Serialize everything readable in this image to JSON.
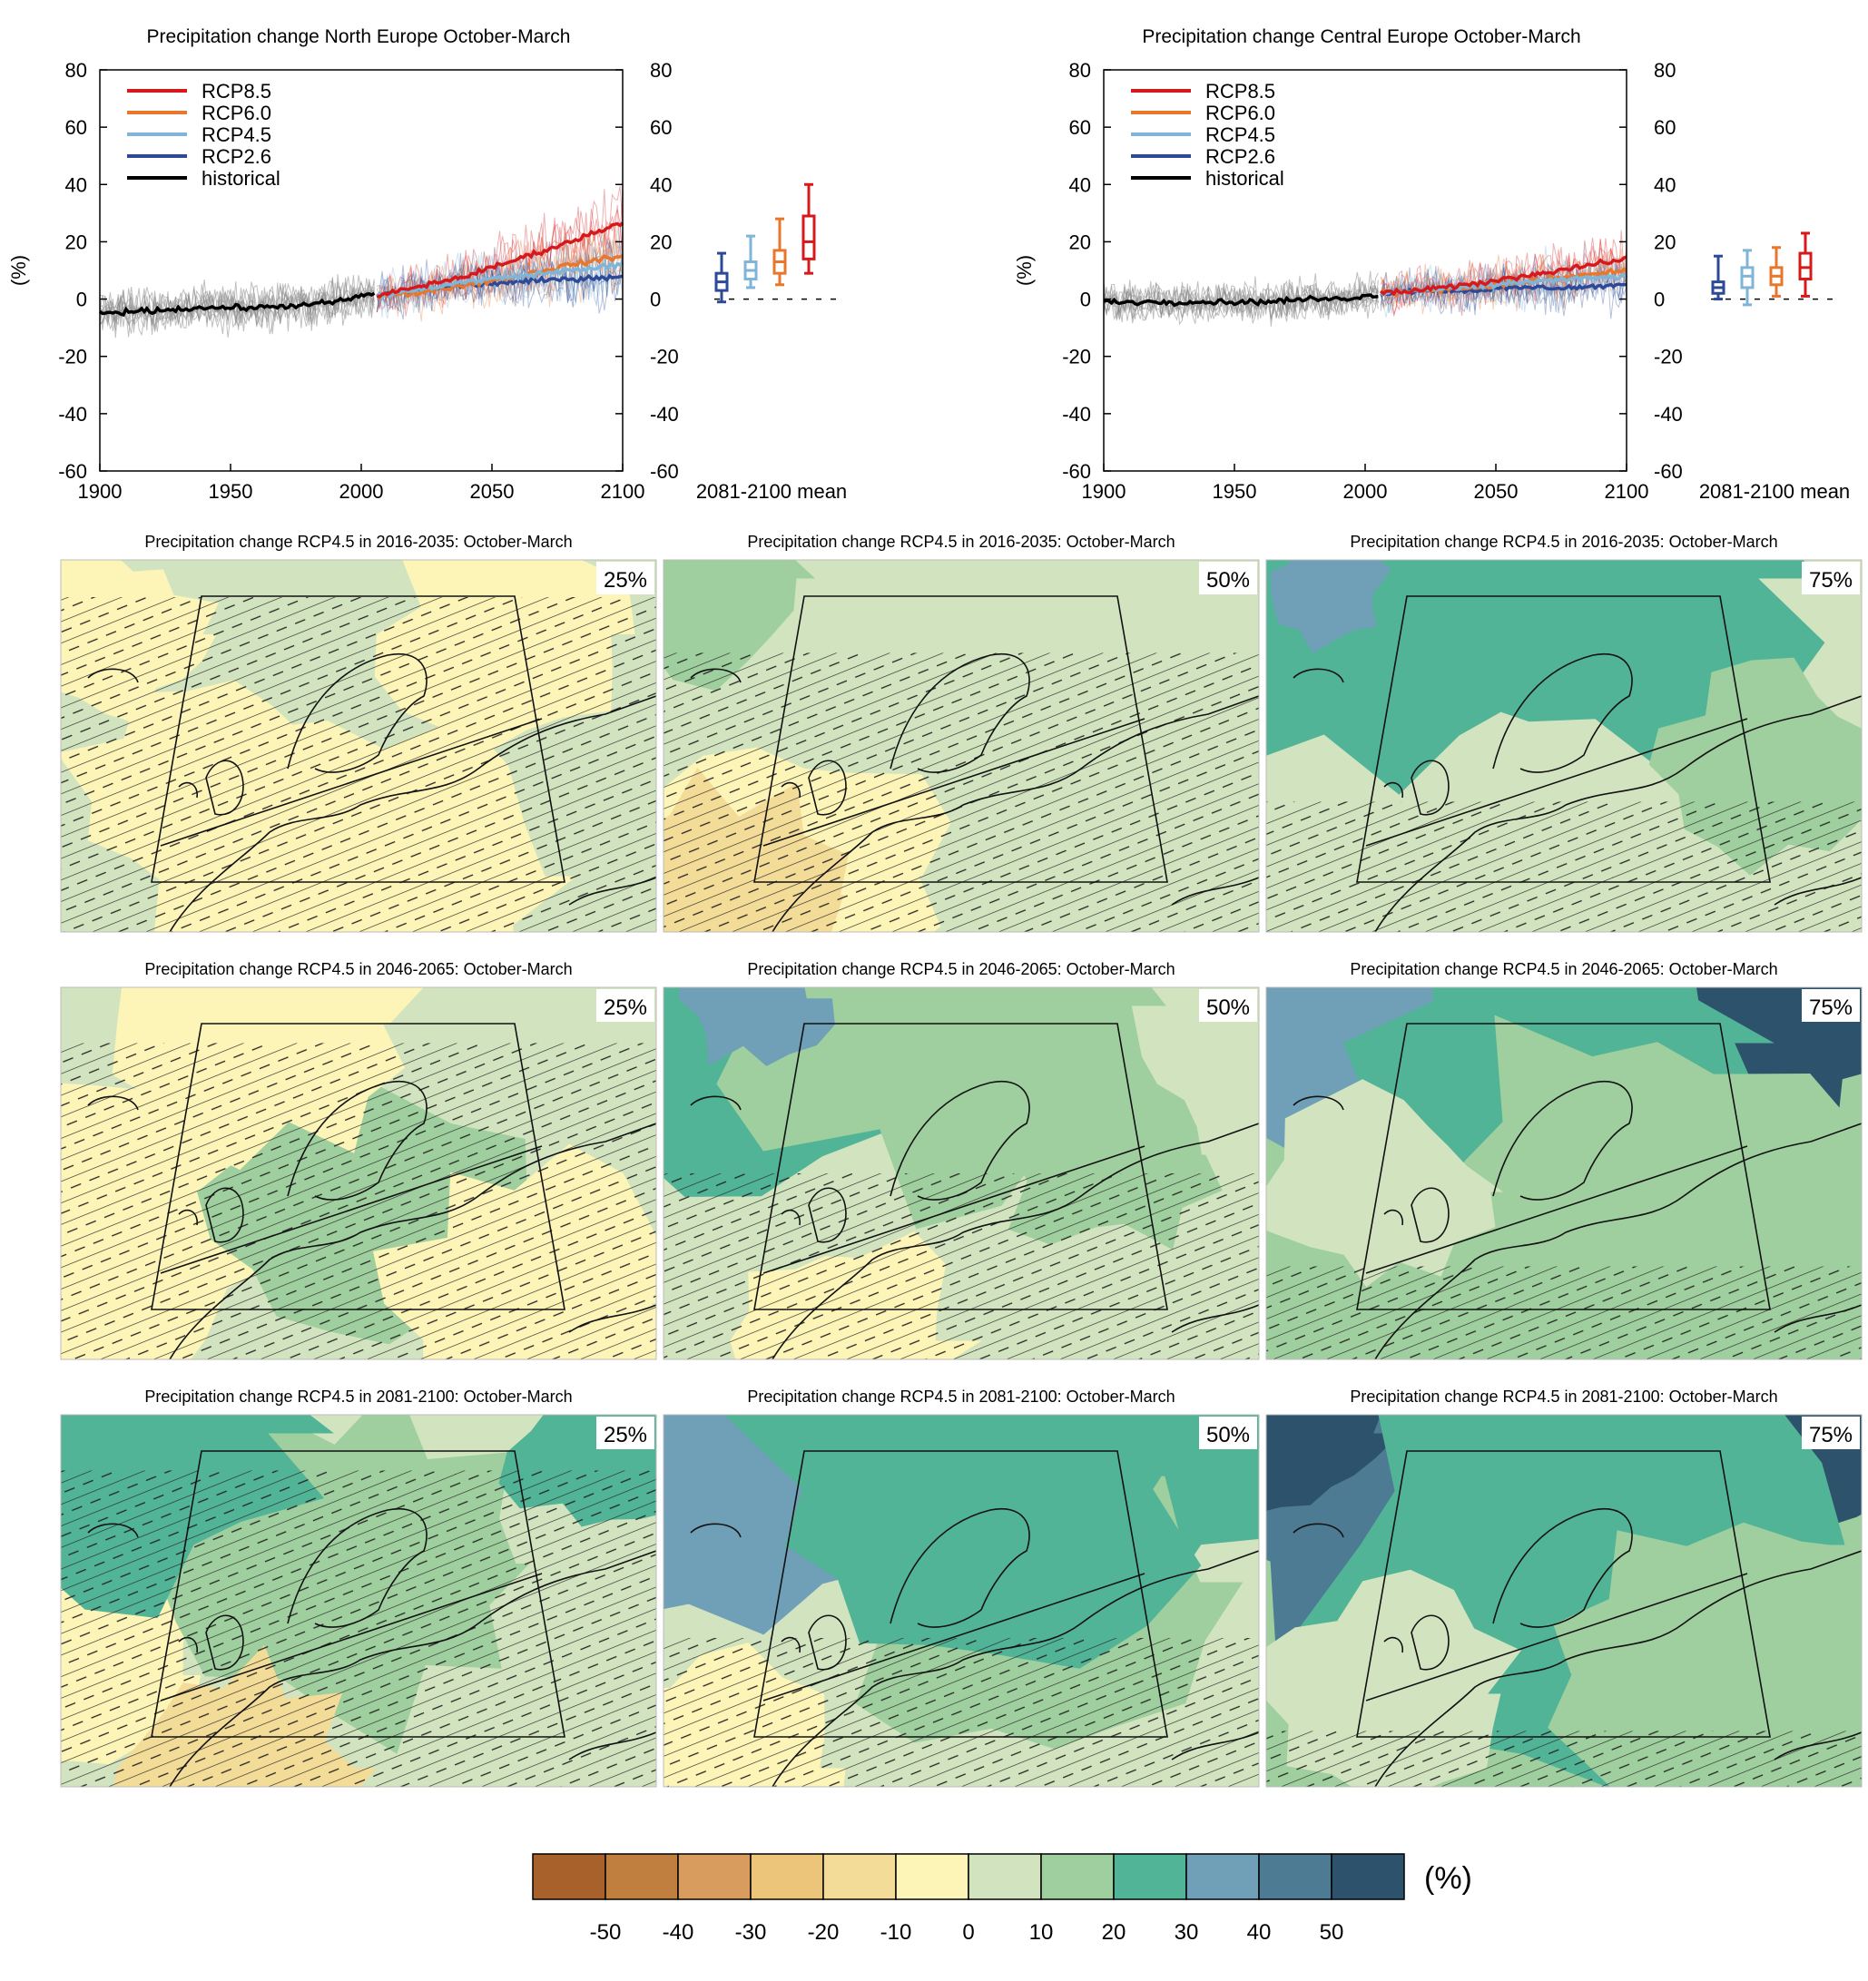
{
  "figure": {
    "colors": {
      "rcp85": "#d7191c",
      "rcp60": "#e8762b",
      "rcp45": "#7fb5d8",
      "rcp26": "#2c4a97",
      "historical": "#000000",
      "historical_ensemble": "#8c8c8c"
    }
  },
  "chart_data": [
    {
      "type": "line",
      "title": "Precipitation change North Europe October-March",
      "ylabel": "(%)",
      "xlim": [
        1900,
        2100
      ],
      "ylim": [
        -60,
        80
      ],
      "xticks": [
        1900,
        1950,
        2000,
        2050,
        2100
      ],
      "yticks": [
        -60,
        -40,
        -20,
        0,
        20,
        40,
        60,
        80
      ],
      "legend": {
        "placement": "top-left",
        "entries": [
          "RCP8.5",
          "RCP6.0",
          "RCP4.5",
          "RCP2.6",
          "historical"
        ]
      },
      "series": [
        {
          "name": "historical",
          "color_key": "historical",
          "x": [
            1900,
            1920,
            1940,
            1960,
            1980,
            1990,
            2000,
            2005
          ],
          "y": [
            -5,
            -4,
            -3,
            -3,
            -2,
            -1,
            1,
            2
          ]
        },
        {
          "name": "RCP2.6",
          "color_key": "rcp26",
          "x": [
            2006,
            2020,
            2040,
            2060,
            2080,
            2100
          ],
          "y": [
            1,
            3,
            5,
            6,
            7,
            8
          ]
        },
        {
          "name": "RCP4.5",
          "color_key": "rcp45",
          "x": [
            2006,
            2020,
            2040,
            2060,
            2080,
            2100
          ],
          "y": [
            1,
            3,
            6,
            8,
            10,
            12
          ]
        },
        {
          "name": "RCP6.0",
          "color_key": "rcp60",
          "x": [
            2006,
            2020,
            2040,
            2060,
            2080,
            2100
          ],
          "y": [
            1,
            2,
            5,
            8,
            12,
            15
          ]
        },
        {
          "name": "RCP8.5",
          "color_key": "rcp85",
          "x": [
            2006,
            2020,
            2040,
            2060,
            2080,
            2100
          ],
          "y": [
            1,
            4,
            8,
            14,
            20,
            27
          ]
        }
      ],
      "boxplots": {
        "label": "2081-2100 mean",
        "items": [
          {
            "scenario": "RCP2.6",
            "color_key": "rcp26",
            "min": -1,
            "q1": 3,
            "median": 6,
            "q3": 9,
            "max": 16
          },
          {
            "scenario": "RCP4.5",
            "color_key": "rcp45",
            "min": 4,
            "q1": 7,
            "median": 10,
            "q3": 13,
            "max": 22
          },
          {
            "scenario": "RCP6.0",
            "color_key": "rcp60",
            "min": 5,
            "q1": 9,
            "median": 13,
            "q3": 17,
            "max": 28
          },
          {
            "scenario": "RCP8.5",
            "color_key": "rcp85",
            "min": 9,
            "q1": 14,
            "median": 20,
            "q3": 29,
            "max": 40
          }
        ]
      }
    },
    {
      "type": "line",
      "title": "Precipitation change Central Europe October-March",
      "ylabel": "(%)",
      "xlim": [
        1900,
        2100
      ],
      "ylim": [
        -60,
        80
      ],
      "xticks": [
        1900,
        1950,
        2000,
        2050,
        2100
      ],
      "yticks": [
        -60,
        -40,
        -20,
        0,
        20,
        40,
        60,
        80
      ],
      "legend": {
        "placement": "top-left",
        "entries": [
          "RCP8.5",
          "RCP6.0",
          "RCP4.5",
          "RCP2.6",
          "historical"
        ]
      },
      "series": [
        {
          "name": "historical",
          "color_key": "historical",
          "x": [
            1900,
            1920,
            1940,
            1960,
            1980,
            1990,
            2000,
            2005
          ],
          "y": [
            -1,
            -1,
            -1,
            -1,
            0,
            0,
            1,
            1
          ]
        },
        {
          "name": "RCP2.6",
          "color_key": "rcp26",
          "x": [
            2006,
            2020,
            2040,
            2060,
            2080,
            2100
          ],
          "y": [
            2,
            3,
            3,
            4,
            4,
            5
          ]
        },
        {
          "name": "RCP4.5",
          "color_key": "rcp45",
          "x": [
            2006,
            2020,
            2040,
            2060,
            2080,
            2100
          ],
          "y": [
            2,
            3,
            4,
            6,
            7,
            8
          ]
        },
        {
          "name": "RCP6.0",
          "color_key": "rcp60",
          "x": [
            2006,
            2020,
            2040,
            2060,
            2080,
            2100
          ],
          "y": [
            2,
            3,
            4,
            6,
            8,
            10
          ]
        },
        {
          "name": "RCP8.5",
          "color_key": "rcp85",
          "x": [
            2006,
            2020,
            2040,
            2060,
            2080,
            2100
          ],
          "y": [
            2,
            3,
            5,
            8,
            11,
            14
          ]
        }
      ],
      "boxplots": {
        "label": "2081-2100 mean",
        "items": [
          {
            "scenario": "RCP2.6",
            "color_key": "rcp26",
            "min": 0,
            "q1": 2,
            "median": 4,
            "q3": 6,
            "max": 15
          },
          {
            "scenario": "RCP4.5",
            "color_key": "rcp45",
            "min": -2,
            "q1": 4,
            "median": 8,
            "q3": 11,
            "max": 17
          },
          {
            "scenario": "RCP6.0",
            "color_key": "rcp60",
            "min": 1,
            "q1": 5,
            "median": 8,
            "q3": 11,
            "max": 18
          },
          {
            "scenario": "RCP8.5",
            "color_key": "rcp85",
            "min": 1,
            "q1": 7,
            "median": 11,
            "q3": 16,
            "max": 23
          }
        ]
      }
    },
    {
      "type": "heatmap",
      "description_kind": "map-panels",
      "colorbar": {
        "unit": "(%)",
        "tick_labels": [
          "-50",
          "-40",
          "-30",
          "-20",
          "-10",
          "0",
          "10",
          "20",
          "30",
          "40",
          "50"
        ],
        "colors": [
          "#a8612b",
          "#c17f3f",
          "#d89c5e",
          "#edc57a",
          "#f3dc98",
          "#fdf4b7",
          "#d2e4bf",
          "#9fcf9e",
          "#52b496",
          "#6fa0b8",
          "#4d7b94",
          "#2d526b"
        ]
      },
      "panels": [
        {
          "title": "Precipitation change RCP4.5 in 2016-2035: October-March",
          "percentile": "25%",
          "base": 6,
          "blobs": [
            [
              0.5,
              0.5,
              0.28,
              6
            ],
            [
              0.25,
              0.65,
              0.22,
              5
            ],
            [
              0.75,
              0.2,
              0.2,
              5
            ],
            [
              0.5,
              0.85,
              0.3,
              5
            ],
            [
              0.1,
              0.2,
              0.15,
              5
            ]
          ],
          "hatch": 0.9
        },
        {
          "title": "Precipitation change RCP4.5 in 2016-2035: October-March",
          "percentile": "50%",
          "base": 6,
          "blobs": [
            [
              0.2,
              0.85,
              0.25,
              5
            ],
            [
              0.1,
              0.9,
              0.2,
              4
            ],
            [
              0.05,
              0.05,
              0.18,
              7
            ]
          ],
          "hatch": 0.75
        },
        {
          "title": "Precipitation change RCP4.5 in 2016-2035: October-March",
          "percentile": "75%",
          "base": 6,
          "blobs": [
            [
              0.15,
              0.05,
              0.35,
              8
            ],
            [
              0.6,
              0.05,
              0.3,
              8
            ],
            [
              0.1,
              0.08,
              0.1,
              9
            ],
            [
              0.85,
              0.55,
              0.18,
              7
            ]
          ],
          "hatch": 0.35
        },
        {
          "title": "Precipitation change RCP4.5 in 2046-2065: October-March",
          "percentile": "25%",
          "base": 6,
          "blobs": [
            [
              0.1,
              0.6,
              0.3,
              5
            ],
            [
              0.5,
              0.55,
              0.25,
              7
            ],
            [
              0.35,
              0.1,
              0.25,
              5
            ],
            [
              0.8,
              0.85,
              0.25,
              5
            ]
          ],
          "hatch": 0.85
        },
        {
          "title": "Precipitation change RCP4.5 in 2046-2065: October-March",
          "percentile": "50%",
          "base": 6,
          "blobs": [
            [
              0.1,
              0.05,
              0.3,
              8
            ],
            [
              0.5,
              0.05,
              0.35,
              7
            ],
            [
              0.15,
              0.03,
              0.12,
              9
            ],
            [
              0.75,
              0.45,
              0.18,
              7
            ],
            [
              0.3,
              0.95,
              0.2,
              5
            ]
          ],
          "hatch": 0.5
        },
        {
          "title": "Precipitation change RCP4.5 in 2046-2065: October-March",
          "percentile": "75%",
          "base": 7,
          "blobs": [
            [
              0.2,
              0.05,
              0.35,
              9
            ],
            [
              0.8,
              0.05,
              0.25,
              11
            ],
            [
              0.5,
              0.15,
              0.3,
              8
            ],
            [
              0.6,
              0.6,
              0.35,
              7
            ],
            [
              0.2,
              0.55,
              0.18,
              6
            ]
          ],
          "hatch": 0.25
        },
        {
          "title": "Precipitation change RCP4.5 in 2081-2100: October-March",
          "percentile": "25%",
          "base": 6,
          "blobs": [
            [
              0.05,
              0.7,
              0.2,
              5
            ],
            [
              0.5,
              0.4,
              0.3,
              7
            ],
            [
              0.1,
              0.05,
              0.3,
              8
            ],
            [
              0.3,
              0.95,
              0.2,
              4
            ],
            [
              0.9,
              0.1,
              0.15,
              8
            ]
          ],
          "hatch": 0.85
        },
        {
          "title": "Precipitation change RCP4.5 in 2081-2100: October-March",
          "percentile": "50%",
          "base": 6,
          "blobs": [
            [
              0.1,
              0.05,
              0.35,
              9
            ],
            [
              0.8,
              0.1,
              0.25,
              8
            ],
            [
              0.6,
              0.45,
              0.3,
              7
            ],
            [
              0.5,
              0.2,
              0.35,
              8
            ],
            [
              0.1,
              0.95,
              0.2,
              5
            ]
          ],
          "hatch": 0.4
        },
        {
          "title": "Precipitation change RCP4.5 in 2081-2100: October-March",
          "percentile": "75%",
          "base": 7,
          "blobs": [
            [
              0.3,
              0.05,
              0.45,
              10
            ],
            [
              0.05,
              0.05,
              0.15,
              11
            ],
            [
              0.8,
              0.05,
              0.25,
              11
            ],
            [
              0.5,
              0.35,
              0.4,
              8
            ],
            [
              0.75,
              0.7,
              0.3,
              7
            ],
            [
              0.2,
              0.75,
              0.2,
              6
            ]
          ],
          "hatch": 0.15
        }
      ]
    }
  ]
}
